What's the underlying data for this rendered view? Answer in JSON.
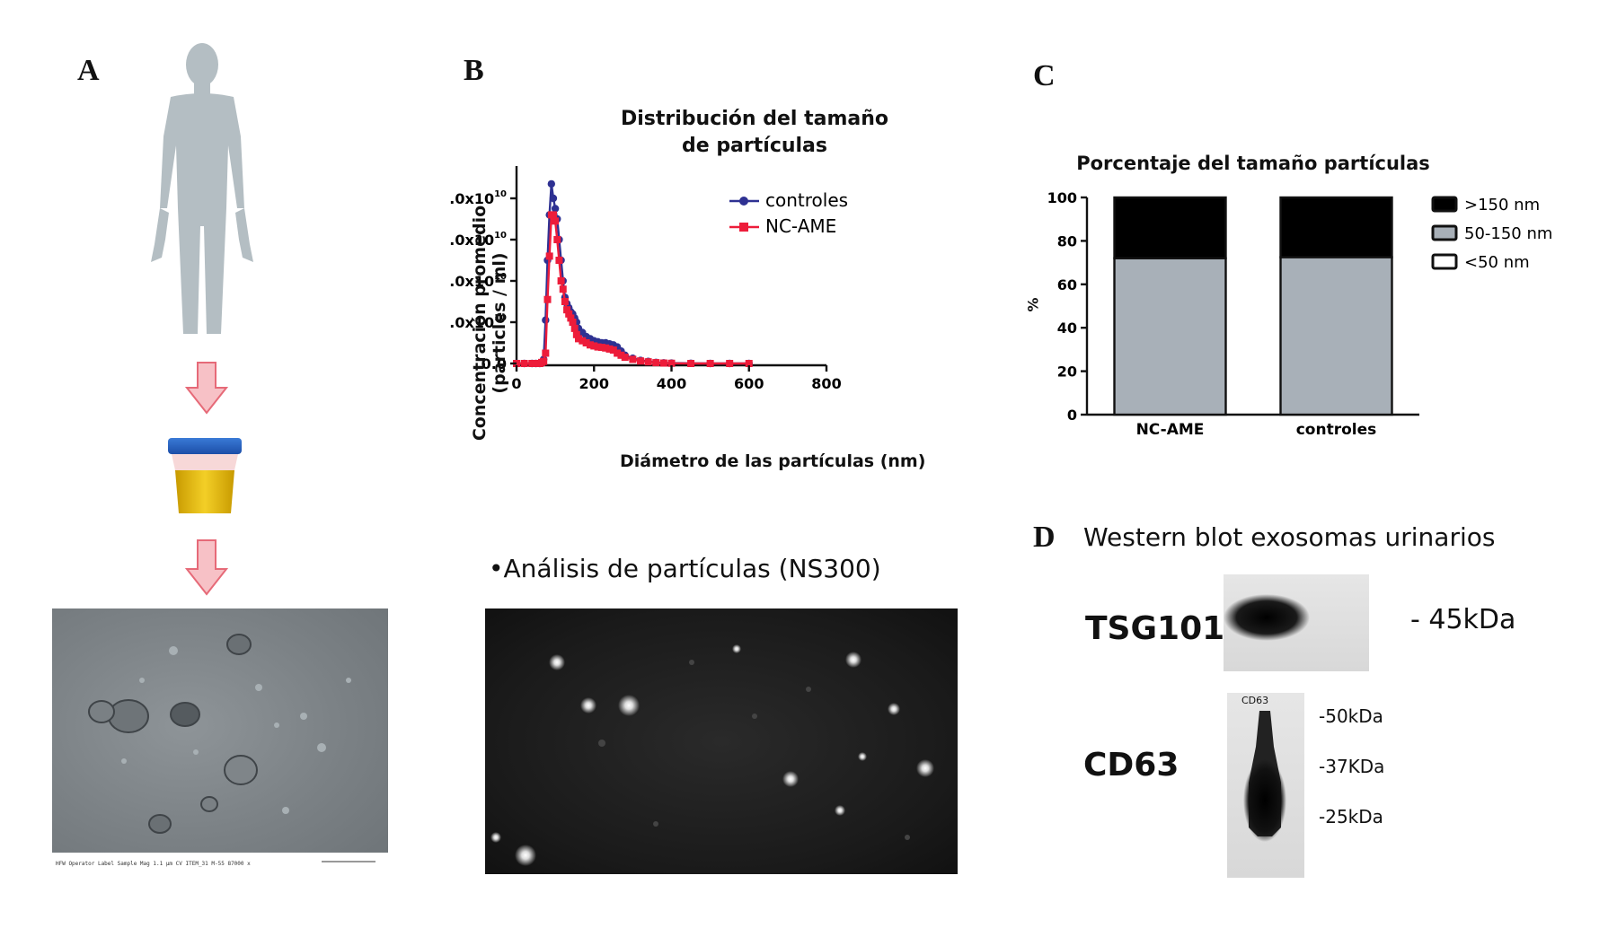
{
  "panels": {
    "a": {
      "letter": "A",
      "em_scalebar_text": "HFW Operator Label Sample Mag  1.1 µm  CV  ITEM_31  M-55  87000 x"
    },
    "b": {
      "letter": "B",
      "title_line1": "Distribución del tamaño",
      "title_line2": "de partículas",
      "subtitle": "•Análisis de partículas (NS300)"
    },
    "c": {
      "letter": "C",
      "title": "Porcentaje del tamaño partículas"
    },
    "d": {
      "letter": "D",
      "title": "Western blot exosomas urinarios",
      "tsg_label": "TSG101",
      "tsg_marker": "- 45kDa",
      "cd63_label": "CD63",
      "cd63_blot_label": "CD63",
      "cd63_markers": [
        "-50kDa",
        "-37KDa",
        "-25kDa"
      ]
    }
  },
  "colors": {
    "controles": "#2e3192",
    "nc_ame": "#ed1c3a",
    "bar_gray": "#a8b0b8",
    "black": "#000000",
    "body_silhouette": "#b4bec3",
    "arrow_fill": "#f7c1c6",
    "arrow_stroke": "#e66a78"
  },
  "icons": {
    "human": "human-silhouette-icon",
    "urine_cup": "urine-sample-cup-icon",
    "arrow": "down-arrow-icon"
  },
  "chart_data": [
    {
      "type": "line",
      "title": "Distribución del tamaño de partículas",
      "xlabel": "Diámetro de las partículas (nm)",
      "ylabel_line1": "Concentración promedio",
      "ylabel_line2": "(particles / ml)",
      "xlim": [
        0,
        800
      ],
      "ylim": [
        0,
        100000000000
      ],
      "x_ticks": [
        "0",
        "200",
        "400",
        "600",
        "800"
      ],
      "y_ticks_mantissa": [
        "0.0",
        "2.0x10",
        "4.0x10",
        "6.0x10",
        "8.0x10",
        "1.0x10"
      ],
      "y_ticks_exp": [
        "",
        "10",
        "10",
        "10",
        "10",
        "11"
      ],
      "legend_position": "top-right",
      "series": [
        {
          "name": "controles",
          "x": [
            0,
            20,
            40,
            50,
            60,
            65,
            70,
            75,
            80,
            85,
            90,
            95,
            100,
            105,
            110,
            115,
            120,
            125,
            130,
            135,
            140,
            145,
            150,
            155,
            160,
            170,
            180,
            190,
            200,
            210,
            220,
            230,
            240,
            250,
            260,
            270,
            280,
            300,
            320,
            340,
            360,
            380,
            400,
            450,
            500,
            550,
            600
          ],
          "y": [
            0,
            0,
            0,
            0,
            0,
            500000000,
            2000000000,
            21000000000,
            50000000000,
            72000000000,
            87000000000,
            80000000000,
            75000000000,
            70000000000,
            60000000000,
            50000000000,
            40000000000,
            32000000000,
            29000000000,
            27000000000,
            25000000000,
            24000000000,
            22000000000,
            20000000000,
            17000000000,
            15000000000,
            13000000000,
            12000000000,
            11000000000,
            10500000000,
            10000000000,
            10000000000,
            9500000000,
            9000000000,
            8000000000,
            6000000000,
            4000000000,
            2500000000,
            1500000000,
            1000000000,
            500000000,
            300000000,
            200000000,
            100000000,
            0,
            0,
            0
          ]
        },
        {
          "name": "NC-AME",
          "x": [
            0,
            20,
            40,
            50,
            60,
            65,
            70,
            75,
            80,
            85,
            90,
            95,
            100,
            105,
            110,
            115,
            120,
            125,
            130,
            135,
            140,
            145,
            150,
            155,
            160,
            170,
            180,
            190,
            200,
            210,
            220,
            230,
            240,
            250,
            260,
            270,
            280,
            300,
            320,
            340,
            360,
            380,
            400,
            450,
            500,
            550,
            600
          ],
          "y": [
            0,
            0,
            0,
            0,
            0,
            500000000,
            1000000000,
            5000000000,
            31000000000,
            52000000000,
            72000000000,
            72000000000,
            69000000000,
            60000000000,
            50000000000,
            40000000000,
            36000000000,
            30000000000,
            26000000000,
            24000000000,
            22000000000,
            20000000000,
            17000000000,
            14000000000,
            12000000000,
            11000000000,
            10000000000,
            9000000000,
            8500000000,
            8000000000,
            7800000000,
            7500000000,
            7000000000,
            6500000000,
            5000000000,
            4000000000,
            3000000000,
            2000000000,
            1200000000,
            800000000,
            400000000,
            200000000,
            100000000,
            0,
            0,
            0,
            0
          ]
        }
      ]
    },
    {
      "type": "bar",
      "stacked": true,
      "title": "Porcentaje del tamaño partículas",
      "ylabel": "%",
      "ylim": [
        0,
        100
      ],
      "y_ticks": [
        "0",
        "20",
        "40",
        "60",
        "80",
        "100"
      ],
      "categories": [
        "NC-AME",
        "controles"
      ],
      "legend_position": "right",
      "series": [
        {
          "name": "<50 nm",
          "values": [
            0,
            0
          ]
        },
        {
          "name": "50-150 nm",
          "values": [
            72,
            72.5
          ]
        },
        {
          "name": ">150 nm",
          "values": [
            28,
            27.5
          ]
        }
      ]
    }
  ]
}
